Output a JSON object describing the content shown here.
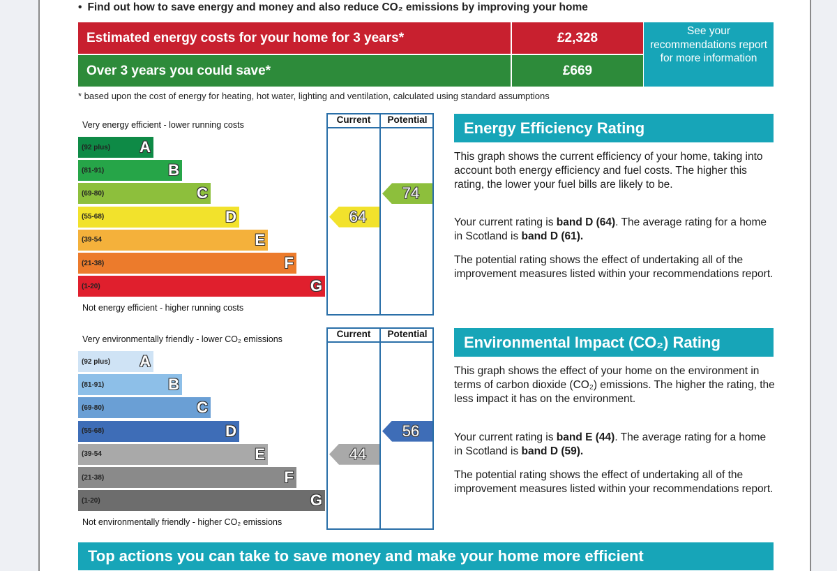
{
  "intro_bullet": "Find out how to save energy and money and also reduce CO₂ emissions by improving your home",
  "costs": {
    "rows": [
      {
        "label": "Estimated energy costs for your home for 3 years*",
        "value": "£2,328"
      },
      {
        "label": "Over 3 years you could save*",
        "value": "£669"
      }
    ],
    "see_box": "See your recommendations report for more information",
    "footnote": "* based upon the cost of energy for heating, hot water, lighting and ventilation, calculated using standard assumptions"
  },
  "energy_chart": {
    "top_caption": "Very energy efficient - lower running costs",
    "bottom_caption": "Not energy efficient - higher running costs",
    "col_current": "Current",
    "col_potential": "Potential",
    "bands": [
      {
        "range": "(92 plus)",
        "letter": "A",
        "color": "#0e8a46"
      },
      {
        "range": "(81-91)",
        "letter": "B",
        "color": "#26a548"
      },
      {
        "range": "(69-80)",
        "letter": "C",
        "color": "#8dbf3c"
      },
      {
        "range": "(55-68)",
        "letter": "D",
        "color": "#f2e22c"
      },
      {
        "range": "(39-54",
        "letter": "E",
        "color": "#f4b13b"
      },
      {
        "range": "(21-38)",
        "letter": "F",
        "color": "#ec7b2c"
      },
      {
        "range": "(1-20)",
        "letter": "G",
        "color": "#e01f2d"
      }
    ],
    "current": {
      "value": "64",
      "band_index": 3,
      "color": "#f2e22c"
    },
    "potential": {
      "value": "74",
      "band_index": 2,
      "color": "#8dbf3c"
    }
  },
  "co2_chart": {
    "top_caption": "Very environmentally friendly - lower CO₂ emissions",
    "bottom_caption": "Not environmentally friendly - higher CO₂ emissions",
    "col_current": "Current",
    "col_potential": "Potential",
    "bands": [
      {
        "range": "(92 plus)",
        "letter": "A",
        "color": "#cfe3f5"
      },
      {
        "range": "(81-91)",
        "letter": "B",
        "color": "#8dbfe8"
      },
      {
        "range": "(69-80)",
        "letter": "C",
        "color": "#6a9fd5"
      },
      {
        "range": "(55-68)",
        "letter": "D",
        "color": "#3e6db7"
      },
      {
        "range": "(39-54",
        "letter": "E",
        "color": "#a9a9a9"
      },
      {
        "range": "(21-38)",
        "letter": "F",
        "color": "#8a8a8a"
      },
      {
        "range": "(1-20)",
        "letter": "G",
        "color": "#6d6d6d"
      }
    ],
    "current": {
      "value": "44",
      "band_index": 4,
      "color": "#a9a9a9"
    },
    "potential": {
      "value": "56",
      "band_index": 3,
      "color": "#3e6db7"
    }
  },
  "energy_text": {
    "heading": "Energy Efficiency Rating",
    "p1": "This graph shows the current efficiency of your home, taking into account both energy efficiency and fuel costs. The higher this rating, the lower your fuel bills are likely to be.",
    "p2_pre": "Your current rating is ",
    "p2_b1": "band D (64)",
    "p2_mid": ". The average rating for a home in Scotland is ",
    "p2_b2": "band D (61).",
    "p3": "The potential rating shows the effect of undertaking all of the improvement measures listed within your recommendations report."
  },
  "co2_text": {
    "heading": "Environmental Impact (CO₂) Rating",
    "p1": "This graph shows the effect of your home on the environment in terms of carbon dioxide (CO₂) emissions. The higher the rating, the less impact it has on the environment.",
    "p2_pre": "Your current rating is ",
    "p2_b1": "band E (44)",
    "p2_mid": ". The average rating for a home in Scotland is ",
    "p2_b2": "band D (59).",
    "p3": "The potential rating shows the effect of undertaking all of the improvement measures listed within your recommendations report."
  },
  "bottom_banner": "Top actions you can take to save money and make your home more efficient"
}
